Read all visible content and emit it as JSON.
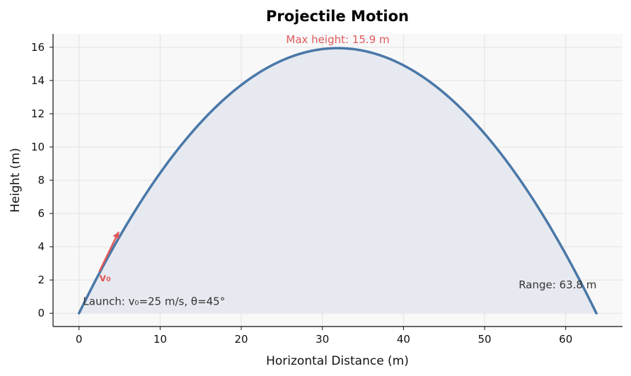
{
  "chart_data": {
    "type": "line",
    "title": "Projectile Motion",
    "xlabel": "Horizontal Distance (m)",
    "ylabel": "Height (m)",
    "xlim": [
      -3.2,
      67
    ],
    "ylim": [
      -0.8,
      16.8
    ],
    "xticks": [
      0,
      10,
      20,
      30,
      40,
      50,
      60
    ],
    "yticks": [
      0,
      2,
      4,
      6,
      8,
      10,
      12,
      14,
      16
    ],
    "grid": true,
    "series": [
      {
        "model": "projectile",
        "v0": 25,
        "angle_deg": 45,
        "g": 9.8,
        "color": "#4a78a8",
        "fill_color": "#e6e9ef"
      }
    ],
    "annotations": {
      "max_height": {
        "text": "Max height: 15.9 m",
        "x": 31.9,
        "y": 16.25,
        "color": "#e05a5a"
      },
      "range": {
        "text": "Range: 63.8 m",
        "x": 54.2,
        "y": 1.5,
        "color": "#333333"
      },
      "launch": {
        "text": "Launch: v₀=25 m/s, θ=45°",
        "x": 0.5,
        "y": 0.5,
        "color": "#333333"
      },
      "velocity": {
        "text": "v₀",
        "x": 2.5,
        "y": 2.0,
        "from": [
          2.5,
          2.5
        ],
        "to": [
          4.9,
          4.9
        ],
        "color": "#e05a5a"
      }
    },
    "colors": {
      "axis": "#111111",
      "grid": "#e2e2e2",
      "plot_bg": "#f8f8f9"
    }
  }
}
